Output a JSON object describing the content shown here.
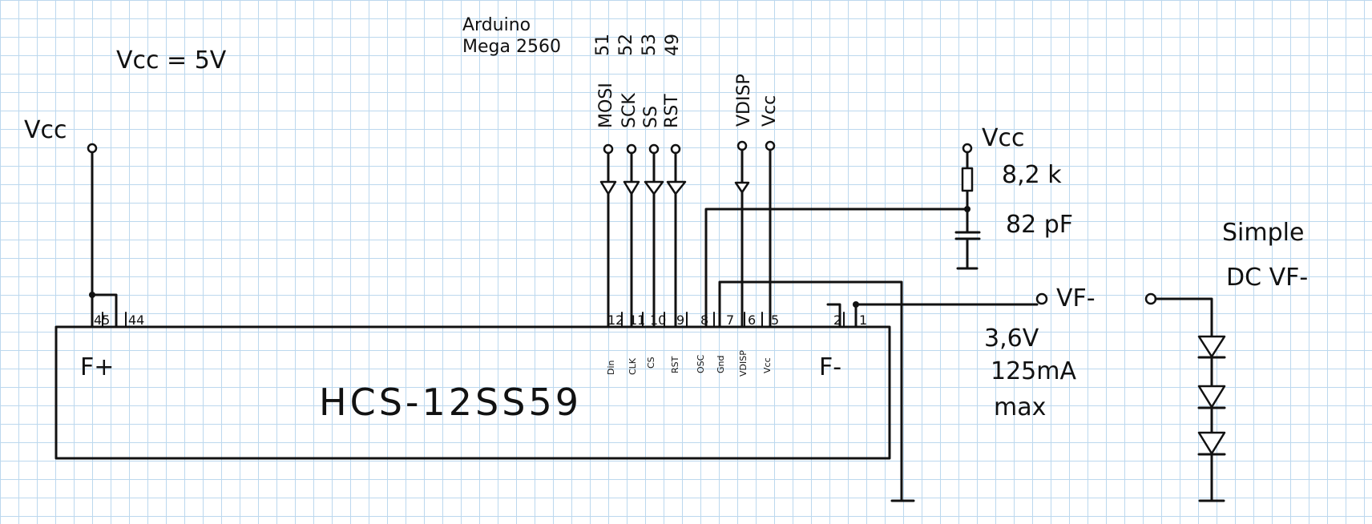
{
  "labels": {
    "vcc_eq": "Vcc = 5V",
    "vcc_left": "Vcc",
    "vcc_rc": "Vcc",
    "board": [
      "Arduino",
      "Mega 2560"
    ],
    "arduino_pins": [
      "51",
      "52",
      "53",
      "49"
    ],
    "signals": [
      "MOSI",
      "SCK",
      "SS",
      "RST"
    ],
    "vdisp": "VDISP",
    "vcc_top": "Vcc",
    "resistor": "8,2 k",
    "capacitor": "82 pF",
    "chip_name": "HCS-12SS59",
    "f_plus": "F+",
    "f_minus": "F-",
    "vf_out": "VF-",
    "supply": [
      "3,6V",
      "125mA",
      "max"
    ],
    "simple_dc": [
      "Simple",
      "DC VF-"
    ]
  },
  "pins": {
    "numbers": [
      "45",
      "44",
      "12",
      "11",
      "10",
      "9",
      "8",
      "7",
      "6",
      "5",
      "2",
      "1"
    ],
    "functions": [
      "Din",
      "CLK",
      "CS",
      "RST",
      "OSC",
      "Gnd",
      "VDISP",
      "Vcc"
    ]
  }
}
